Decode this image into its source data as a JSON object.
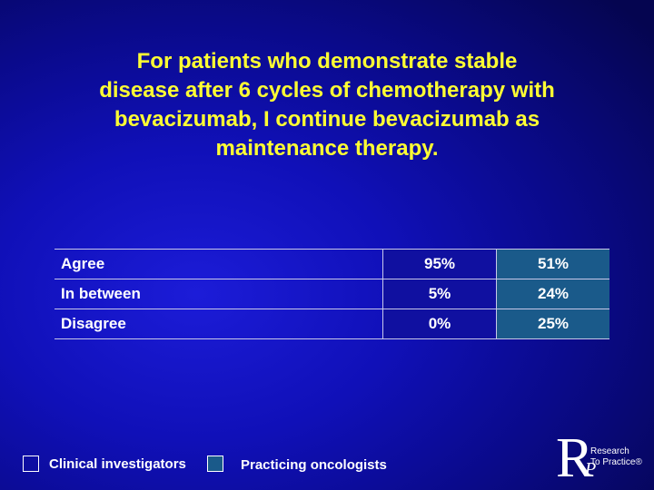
{
  "header": {
    "title_lines": [
      "For patients who demonstrate stable",
      "disease after 6 cycles of chemotherapy with",
      "bevacizumab, I continue bevacizumab as",
      "maintenance therapy."
    ]
  },
  "table": {
    "rows": [
      [
        "Agree",
        "95%",
        "51%"
      ],
      [
        "In between",
        "5%",
        "24%"
      ],
      [
        "Disagree",
        "0%",
        "25%"
      ]
    ]
  },
  "legend": [
    "Clinical investigators",
    "Practicing oncologists"
  ],
  "logo": {
    "letter": "R",
    "sub": "P",
    "line1": "Research",
    "line2": "To Practice®"
  }
}
